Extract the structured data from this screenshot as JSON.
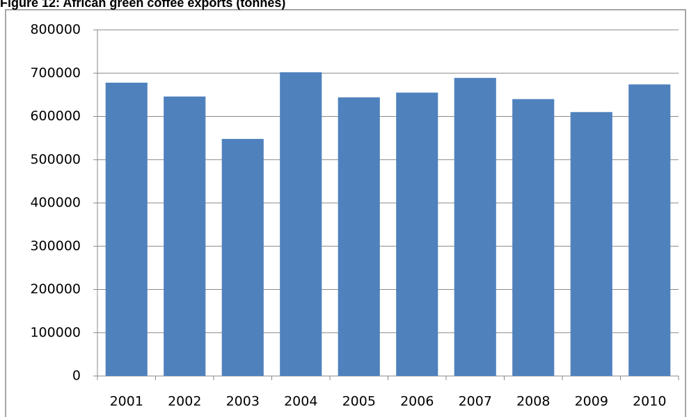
{
  "chart_data": {
    "type": "bar",
    "title": "Figure 12: African green coffee exports (tonnes)",
    "categories": [
      "2001",
      "2002",
      "2003",
      "2004",
      "2005",
      "2006",
      "2007",
      "2008",
      "2009",
      "2010"
    ],
    "values": [
      678000,
      646000,
      548000,
      702000,
      644000,
      655000,
      689000,
      640000,
      610000,
      674000
    ],
    "color": "#4f81bd",
    "ylim": [
      0,
      800000
    ],
    "yticks": [
      0,
      100000,
      200000,
      300000,
      400000,
      500000,
      600000,
      700000,
      800000
    ],
    "grid": true
  }
}
